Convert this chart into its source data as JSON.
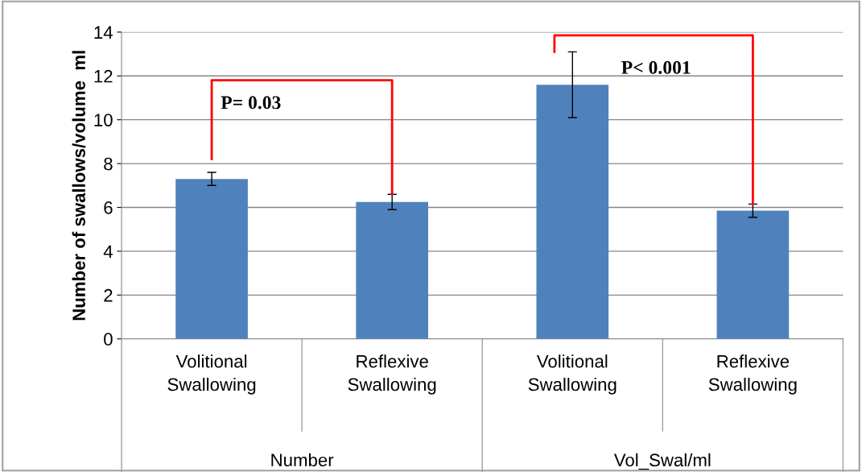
{
  "chart_data": {
    "type": "bar",
    "ylabel": "Number of swallows/volume  ml",
    "categories": [
      "Volitional\nSwallowing",
      "Reflexive\nSwallowing",
      "Volitional\nSwallowing",
      "Reflexive\nSwallowing"
    ],
    "values": [
      7.3,
      6.25,
      11.6,
      5.85
    ],
    "errors": [
      0.3,
      0.35,
      1.5,
      0.3
    ],
    "color": "#4f81bd",
    "ylim": [
      0,
      14
    ],
    "yticks": [
      0,
      2,
      4,
      6,
      8,
      10,
      12,
      14
    ],
    "grid": "y",
    "annotations": [
      "P= 0.03",
      "P< 0.001",
      "Number",
      "Vol_Swal/ml"
    ]
  }
}
